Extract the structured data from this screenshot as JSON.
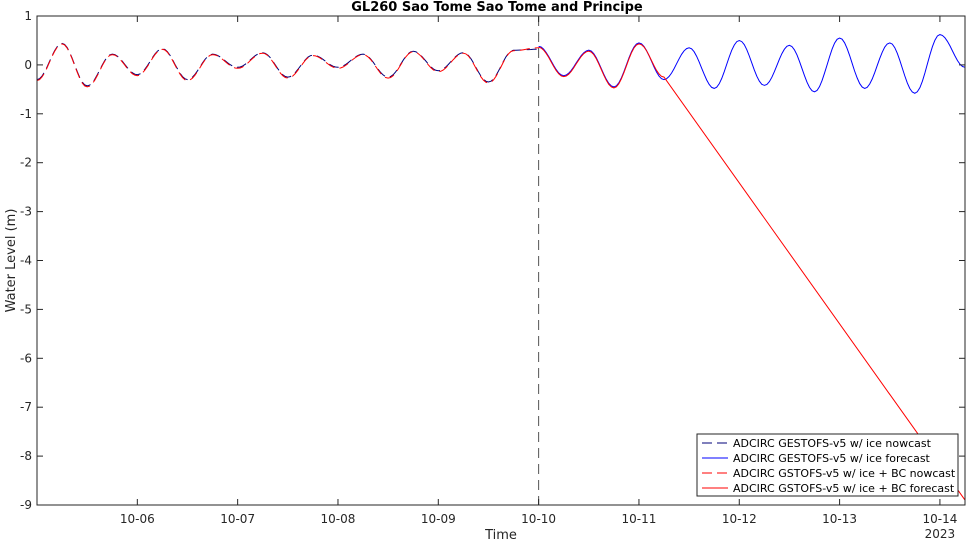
{
  "chart_data": {
    "type": "line",
    "title": "GL260 Sao Tome Sao Tome and Principe",
    "xlabel": "Time",
    "ylabel": "Water Level (m)",
    "ylim": [
      -9,
      1
    ],
    "yticks": [
      "1",
      "0",
      "-1",
      "-2",
      "-3",
      "-4",
      "-5",
      "-6",
      "-7",
      "-8",
      "-9"
    ],
    "ytick_values": [
      1,
      0,
      -1,
      -2,
      -3,
      -4,
      -5,
      -6,
      -7,
      -8,
      -9
    ],
    "xlim": [
      "2023-10-05 00:00",
      "2023-10-14 06:00"
    ],
    "xticks": [
      "10-06",
      "10-07",
      "10-08",
      "10-09",
      "10-10",
      "10-11",
      "10-12",
      "10-13",
      "10-14"
    ],
    "xtick_dates": [
      "2023-10-06",
      "2023-10-07",
      "2023-10-08",
      "2023-10-09",
      "2023-10-10",
      "2023-10-11",
      "2023-10-12",
      "2023-10-13",
      "2023-10-14"
    ],
    "year_label": "2023",
    "nowcast_end": "2023-10-10 00:00",
    "grid": false,
    "legend_position": "bottom-right",
    "series": [
      {
        "name": "ADCIRC GESTOFS-v5 w/ ice nowcast",
        "color": "#00007a",
        "style": "dashed",
        "x": [
          "2023-10-05 00:00",
          "2023-10-05 06:00",
          "2023-10-05 12:00",
          "2023-10-05 18:00",
          "2023-10-06 00:00",
          "2023-10-06 06:00",
          "2023-10-06 12:00",
          "2023-10-06 18:00",
          "2023-10-07 00:00",
          "2023-10-07 06:00",
          "2023-10-07 12:00",
          "2023-10-07 18:00",
          "2023-10-08 00:00",
          "2023-10-08 06:00",
          "2023-10-08 12:00",
          "2023-10-08 18:00",
          "2023-10-09 00:00",
          "2023-10-09 06:00",
          "2023-10-09 12:00",
          "2023-10-09 18:00",
          "2023-10-10 00:00"
        ],
        "y": [
          -0.3,
          0.44,
          -0.43,
          0.22,
          -0.2,
          0.33,
          -0.3,
          0.22,
          -0.05,
          0.25,
          -0.25,
          0.2,
          -0.05,
          0.22,
          -0.25,
          0.28,
          -0.12,
          0.25,
          -0.35,
          0.3,
          0.32
        ]
      },
      {
        "name": "ADCIRC GESTOFS-v5 w/ ice forecast",
        "color": "#0000ff",
        "style": "solid",
        "x": [
          "2023-10-10 00:00",
          "2023-10-10 06:00",
          "2023-10-10 12:00",
          "2023-10-10 18:00",
          "2023-10-11 00:00",
          "2023-10-11 06:00",
          "2023-10-11 12:00",
          "2023-10-11 18:00",
          "2023-10-12 00:00",
          "2023-10-12 06:00",
          "2023-10-12 12:00",
          "2023-10-12 18:00",
          "2023-10-13 00:00",
          "2023-10-13 06:00",
          "2023-10-13 12:00",
          "2023-10-13 18:00",
          "2023-10-14 00:00",
          "2023-10-14 06:00"
        ],
        "y": [
          0.38,
          -0.22,
          0.3,
          -0.45,
          0.45,
          -0.3,
          0.35,
          -0.48,
          0.5,
          -0.42,
          0.4,
          -0.55,
          0.55,
          -0.48,
          0.45,
          -0.58,
          0.62,
          -0.05
        ]
      },
      {
        "name": "ADCIRC GSTOFS-v5 w/ ice + BC nowcast",
        "color": "#ff0000",
        "style": "dashed",
        "x": [
          "2023-10-05 00:00",
          "2023-10-05 06:00",
          "2023-10-05 12:00",
          "2023-10-05 18:00",
          "2023-10-06 00:00",
          "2023-10-06 06:00",
          "2023-10-06 12:00",
          "2023-10-06 18:00",
          "2023-10-07 00:00",
          "2023-10-07 06:00",
          "2023-10-07 12:00",
          "2023-10-07 18:00",
          "2023-10-08 00:00",
          "2023-10-08 06:00",
          "2023-10-08 12:00",
          "2023-10-08 18:00",
          "2023-10-09 00:00",
          "2023-10-09 06:00",
          "2023-10-09 12:00",
          "2023-10-09 18:00",
          "2023-10-10 00:00"
        ],
        "y": [
          -0.32,
          0.43,
          -0.45,
          0.21,
          -0.22,
          0.32,
          -0.32,
          0.21,
          -0.07,
          0.24,
          -0.27,
          0.19,
          -0.07,
          0.21,
          -0.27,
          0.27,
          -0.14,
          0.24,
          -0.37,
          0.29,
          0.35
        ]
      },
      {
        "name": "ADCIRC GSTOFS-v5 w/ ice + BC forecast",
        "color": "#ff0000",
        "style": "solid",
        "x": [
          "2023-10-10 00:00",
          "2023-10-10 06:00",
          "2023-10-10 12:00",
          "2023-10-10 18:00",
          "2023-10-11 00:00",
          "2023-10-11 06:00",
          "2023-10-14 06:00"
        ],
        "y": [
          0.36,
          -0.24,
          0.28,
          -0.47,
          0.43,
          -0.25,
          -8.9
        ]
      }
    ]
  }
}
